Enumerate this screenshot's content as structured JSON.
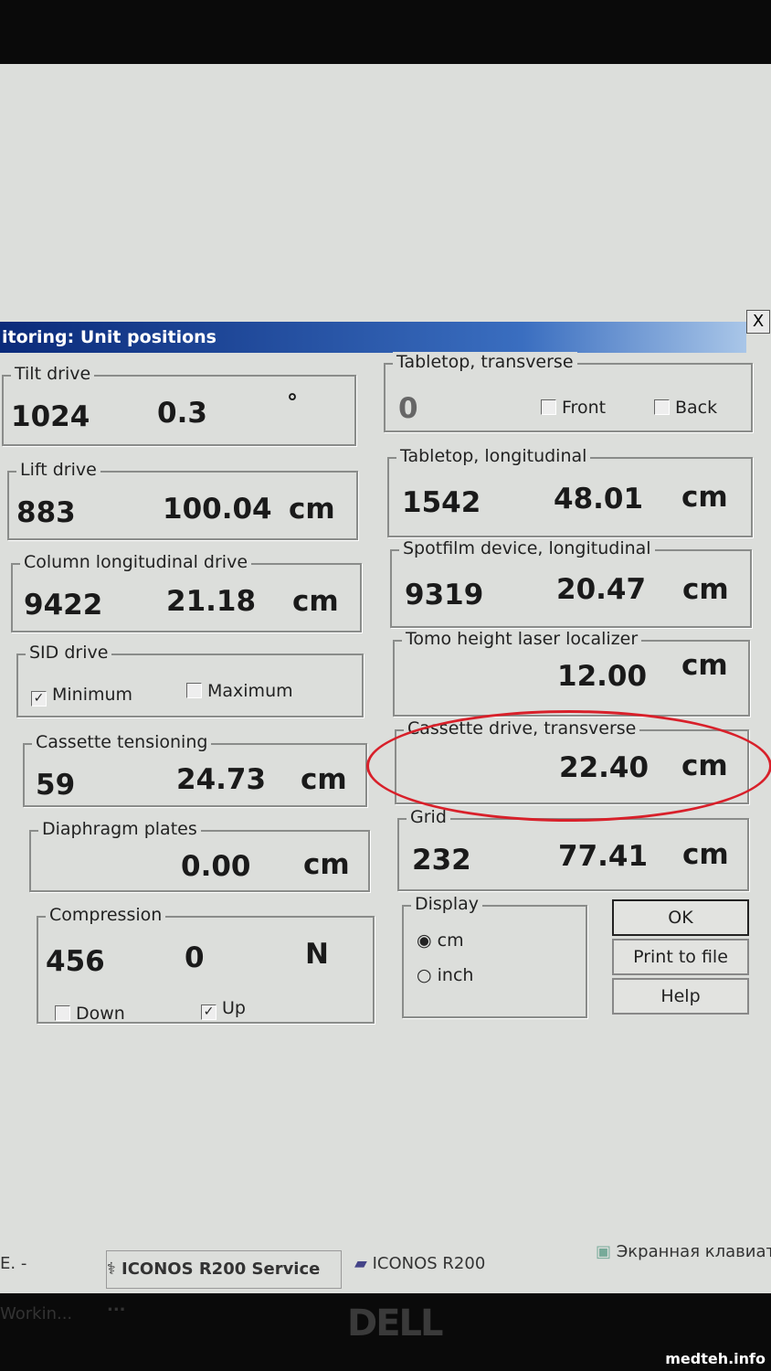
{
  "window": {
    "title": "itoring: Unit positions",
    "close": "X"
  },
  "groups": {
    "tilt": {
      "label": "Tilt drive",
      "raw": "1024",
      "value": "0.3",
      "unit": "°"
    },
    "lift": {
      "label": "Lift drive",
      "raw": "883",
      "value": "100.04",
      "unit": "cm"
    },
    "column": {
      "label": "Column longitudinal drive",
      "raw": "9422",
      "value": "21.18",
      "unit": "cm"
    },
    "sid": {
      "label": "SID drive",
      "min_label": "Minimum",
      "min_checked": true,
      "max_label": "Maximum",
      "max_checked": false
    },
    "cassette_tension": {
      "label": "Cassette tensioning",
      "raw": "59",
      "value": "24.73",
      "unit": "cm"
    },
    "diaphragm": {
      "label": "Diaphragm plates",
      "value": "0.00",
      "unit": "cm"
    },
    "compression": {
      "label": "Compression",
      "raw": "456",
      "value": "0",
      "unit": "N",
      "down_label": "Down",
      "down_checked": false,
      "up_label": "Up",
      "up_checked": true
    },
    "table_trans": {
      "label": "Tabletop, transverse",
      "raw": "0",
      "front_label": "Front",
      "front_checked": false,
      "back_label": "Back",
      "back_checked": false
    },
    "table_long": {
      "label": "Tabletop, longitudinal",
      "raw": "1542",
      "value": "48.01",
      "unit": "cm"
    },
    "spotfilm": {
      "label": "Spotfilm device, longitudinal",
      "raw": "9319",
      "value": "20.47",
      "unit": "cm"
    },
    "tomo": {
      "label": "Tomo height laser localizer",
      "value": "12.00",
      "unit": "cm"
    },
    "cassette_drive": {
      "label": "Cassette drive, transverse",
      "value": "22.40",
      "unit": "cm",
      "highlight_color": "#d8202a"
    },
    "grid": {
      "label": "Grid",
      "raw": "232",
      "value": "77.41",
      "unit": "cm"
    },
    "display": {
      "label": "Display",
      "options": [
        "cm",
        "inch"
      ],
      "selected": "cm"
    }
  },
  "buttons": {
    "ok": "OK",
    "print": "Print to file",
    "help": "Help"
  },
  "taskbar": [
    "E. - Workin...",
    "ICONOS R200 Service ...",
    "ICONOS R200",
    "Экранная клавиату"
  ],
  "monitor_logo": "DELL",
  "watermark": "medteh.info"
}
